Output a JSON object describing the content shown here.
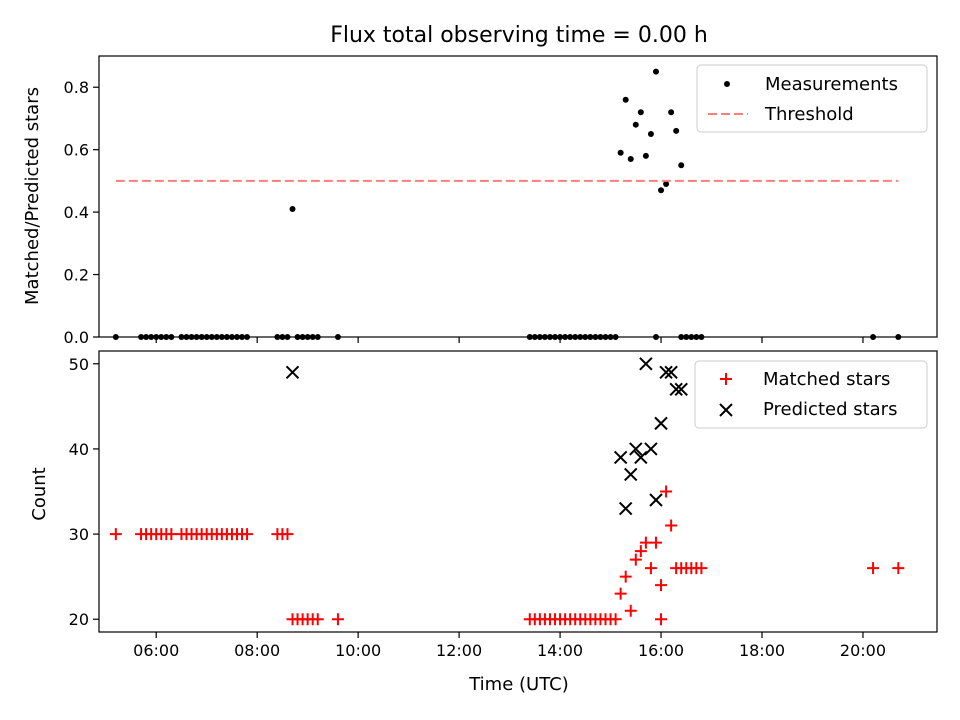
{
  "chart_data": [
    {
      "type": "scatter",
      "title": "Flux total observing time = 0.00 h",
      "ylabel": "Matched/Predicted stars",
      "xlim": [
        "04:52",
        "21:28"
      ],
      "ylim": [
        0,
        0.9
      ],
      "yticks": [
        "0.0",
        "0.2",
        "0.4",
        "0.6",
        "0.8"
      ],
      "legend_position": "top-right",
      "series": [
        {
          "name": "Measurements",
          "color": "#000000",
          "marker": "dot",
          "points": [
            [
              "05:12",
              0
            ],
            [
              "05:42",
              0
            ],
            [
              "05:48",
              0
            ],
            [
              "05:54",
              0
            ],
            [
              "06:00",
              0
            ],
            [
              "06:06",
              0
            ],
            [
              "06:12",
              0
            ],
            [
              "06:18",
              0
            ],
            [
              "06:30",
              0
            ],
            [
              "06:36",
              0
            ],
            [
              "06:42",
              0
            ],
            [
              "06:48",
              0
            ],
            [
              "06:54",
              0
            ],
            [
              "07:00",
              0
            ],
            [
              "07:06",
              0
            ],
            [
              "07:12",
              0
            ],
            [
              "07:18",
              0
            ],
            [
              "07:24",
              0
            ],
            [
              "07:30",
              0
            ],
            [
              "07:36",
              0
            ],
            [
              "07:42",
              0
            ],
            [
              "07:48",
              0
            ],
            [
              "08:24",
              0
            ],
            [
              "08:30",
              0
            ],
            [
              "08:36",
              0
            ],
            [
              "08:42",
              0.41
            ],
            [
              "08:48",
              0
            ],
            [
              "08:54",
              0
            ],
            [
              "09:00",
              0
            ],
            [
              "09:06",
              0
            ],
            [
              "09:12",
              0
            ],
            [
              "09:36",
              0
            ],
            [
              "13:24",
              0
            ],
            [
              "13:30",
              0
            ],
            [
              "13:36",
              0
            ],
            [
              "13:42",
              0
            ],
            [
              "13:48",
              0
            ],
            [
              "13:54",
              0
            ],
            [
              "14:00",
              0
            ],
            [
              "14:06",
              0
            ],
            [
              "14:12",
              0
            ],
            [
              "14:18",
              0
            ],
            [
              "14:24",
              0
            ],
            [
              "14:30",
              0
            ],
            [
              "14:36",
              0
            ],
            [
              "14:42",
              0
            ],
            [
              "14:48",
              0
            ],
            [
              "14:54",
              0
            ],
            [
              "15:00",
              0
            ],
            [
              "15:06",
              0
            ],
            [
              "15:12",
              0.59
            ],
            [
              "15:18",
              0.76
            ],
            [
              "15:24",
              0.57
            ],
            [
              "15:30",
              0.68
            ],
            [
              "15:36",
              0.72
            ],
            [
              "15:42",
              0.58
            ],
            [
              "15:48",
              0.65
            ],
            [
              "15:54",
              0.85
            ],
            [
              "15:54",
              0
            ],
            [
              "16:00",
              0.47
            ],
            [
              "16:06",
              0.49
            ],
            [
              "16:12",
              0.72
            ],
            [
              "16:18",
              0.66
            ],
            [
              "16:24",
              0.55
            ],
            [
              "16:24",
              0
            ],
            [
              "16:30",
              0
            ],
            [
              "16:36",
              0
            ],
            [
              "16:42",
              0
            ],
            [
              "16:48",
              0
            ],
            [
              "20:12",
              0
            ],
            [
              "20:42",
              0
            ]
          ]
        },
        {
          "name": "Threshold",
          "color": "#ff7f7f",
          "line": "dashed",
          "x": [
            "05:12",
            "20:42"
          ],
          "y": [
            0.5,
            0.5
          ]
        }
      ]
    },
    {
      "type": "scatter",
      "xlabel": "Time (UTC)",
      "ylabel": "Count",
      "xlim": [
        "04:52",
        "21:28"
      ],
      "ylim": [
        18.5,
        51.5
      ],
      "yticks": [
        "20",
        "30",
        "40",
        "50"
      ],
      "xticks": [
        "06:00",
        "08:00",
        "10:00",
        "12:00",
        "14:00",
        "16:00",
        "18:00",
        "20:00"
      ],
      "legend_position": "top-right",
      "series": [
        {
          "name": "Matched stars",
          "color": "#ff0000",
          "marker": "plus",
          "points": [
            [
              "05:12",
              30
            ],
            [
              "05:42",
              30
            ],
            [
              "05:48",
              30
            ],
            [
              "05:54",
              30
            ],
            [
              "06:00",
              30
            ],
            [
              "06:06",
              30
            ],
            [
              "06:12",
              30
            ],
            [
              "06:18",
              30
            ],
            [
              "06:30",
              30
            ],
            [
              "06:36",
              30
            ],
            [
              "06:42",
              30
            ],
            [
              "06:48",
              30
            ],
            [
              "06:54",
              30
            ],
            [
              "07:00",
              30
            ],
            [
              "07:06",
              30
            ],
            [
              "07:12",
              30
            ],
            [
              "07:18",
              30
            ],
            [
              "07:24",
              30
            ],
            [
              "07:30",
              30
            ],
            [
              "07:36",
              30
            ],
            [
              "07:42",
              30
            ],
            [
              "07:48",
              30
            ],
            [
              "08:24",
              30
            ],
            [
              "08:30",
              30
            ],
            [
              "08:36",
              30
            ],
            [
              "08:42",
              20
            ],
            [
              "08:48",
              20
            ],
            [
              "08:54",
              20
            ],
            [
              "09:00",
              20
            ],
            [
              "09:06",
              20
            ],
            [
              "09:12",
              20
            ],
            [
              "09:36",
              20
            ],
            [
              "13:24",
              20
            ],
            [
              "13:30",
              20
            ],
            [
              "13:36",
              20
            ],
            [
              "13:42",
              20
            ],
            [
              "13:48",
              20
            ],
            [
              "13:54",
              20
            ],
            [
              "14:00",
              20
            ],
            [
              "14:06",
              20
            ],
            [
              "14:12",
              20
            ],
            [
              "14:18",
              20
            ],
            [
              "14:24",
              20
            ],
            [
              "14:30",
              20
            ],
            [
              "14:36",
              20
            ],
            [
              "14:42",
              20
            ],
            [
              "14:48",
              20
            ],
            [
              "14:54",
              20
            ],
            [
              "15:00",
              20
            ],
            [
              "15:06",
              20
            ],
            [
              "15:12",
              23
            ],
            [
              "15:18",
              25
            ],
            [
              "15:24",
              21
            ],
            [
              "15:30",
              27
            ],
            [
              "15:36",
              28
            ],
            [
              "15:42",
              29
            ],
            [
              "15:48",
              26
            ],
            [
              "15:54",
              29
            ],
            [
              "16:00",
              20
            ],
            [
              "16:00",
              24
            ],
            [
              "16:06",
              35
            ],
            [
              "16:12",
              31
            ],
            [
              "16:18",
              26
            ],
            [
              "16:24",
              26
            ],
            [
              "16:30",
              26
            ],
            [
              "16:36",
              26
            ],
            [
              "16:42",
              26
            ],
            [
              "16:48",
              26
            ],
            [
              "20:12",
              26
            ],
            [
              "20:42",
              26
            ]
          ]
        },
        {
          "name": "Predicted stars",
          "color": "#000000",
          "marker": "x",
          "points": [
            [
              "08:42",
              49
            ],
            [
              "15:12",
              39
            ],
            [
              "15:18",
              33
            ],
            [
              "15:24",
              37
            ],
            [
              "15:30",
              40
            ],
            [
              "15:36",
              39
            ],
            [
              "15:42",
              50
            ],
            [
              "15:48",
              40
            ],
            [
              "15:54",
              34
            ],
            [
              "16:00",
              43
            ],
            [
              "16:06",
              49
            ],
            [
              "16:12",
              49
            ],
            [
              "16:18",
              47
            ],
            [
              "16:24",
              47
            ]
          ]
        }
      ]
    }
  ]
}
